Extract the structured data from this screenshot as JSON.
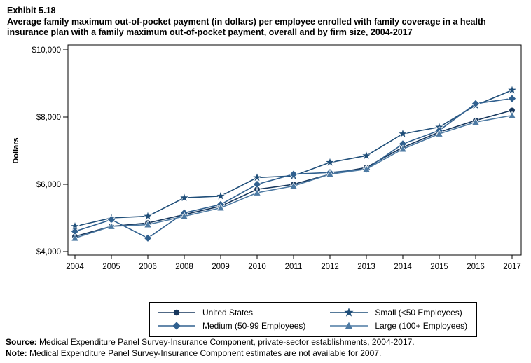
{
  "header": {
    "exhibit_label": "Exhibit 5.18",
    "title": "Average family maximum out-of-pocket payment (in dollars) per employee enrolled with family coverage in a health insurance plan with a family maximum out-of-pocket payment, overall and by firm size, 2004-2017"
  },
  "chart_data": {
    "type": "line",
    "ylabel": "Dollars",
    "ylim": [
      4000,
      10000
    ],
    "yticks": [
      4000,
      6000,
      8000,
      10000
    ],
    "ytick_labels": [
      "$4,000",
      "$6,000",
      "$8,000",
      "$10,000"
    ],
    "categories": [
      "2004",
      "2005",
      "2006",
      "2008",
      "2009",
      "2010",
      "2011",
      "2012",
      "2013",
      "2014",
      "2015",
      "2016",
      "2017"
    ],
    "grid": false,
    "legend_position": "bottom",
    "series": [
      {
        "name": "United States",
        "marker": "circle",
        "color": "#17375d",
        "values": [
          4450,
          4750,
          4850,
          5100,
          5350,
          5850,
          6000,
          6300,
          6500,
          7100,
          7550,
          7900,
          8200
        ]
      },
      {
        "name": "Small (<50 Employees)",
        "marker": "star",
        "color": "#1f4e79",
        "values": [
          4750,
          5000,
          5050,
          5600,
          5650,
          6200,
          6250,
          6650,
          6850,
          7500,
          7700,
          8350,
          8800
        ]
      },
      {
        "name": "Medium (50-99 Employees)",
        "marker": "diamond",
        "color": "#30608f",
        "values": [
          4600,
          4950,
          4400,
          5150,
          5400,
          6000,
          6300,
          6350,
          6450,
          7200,
          7600,
          8400,
          8550
        ]
      },
      {
        "name": "Large (100+ Employees)",
        "marker": "triangle",
        "color": "#4d7aa3",
        "values": [
          4400,
          4750,
          4800,
          5050,
          5300,
          5750,
          5950,
          6300,
          6450,
          7050,
          7500,
          7850,
          8050
        ]
      }
    ]
  },
  "footer": {
    "source_label": "Source:",
    "source_text": " Medical Expenditure Panel Survey-Insurance Component, private-sector establishments, 2004-2017.",
    "note_label": "Note:",
    "note_text": " Medical Expenditure Panel Survey-Insurance Component estimates are not available for 2007."
  }
}
